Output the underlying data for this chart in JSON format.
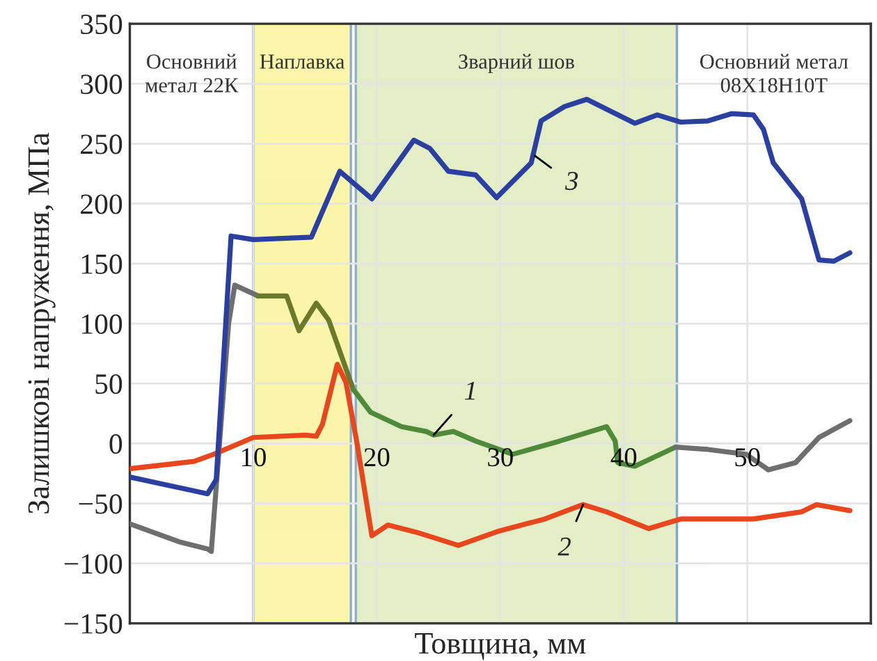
{
  "chart_data": {
    "type": "line",
    "xlabel": "Товщина, мм",
    "ylabel": "Залишкові напруження, МПа",
    "xlim": [
      0,
      60
    ],
    "ylim": [
      -150,
      350
    ],
    "xticks": [
      10,
      20,
      30,
      40,
      50
    ],
    "yticks": [
      {
        "value": -150,
        "label": "−150"
      },
      {
        "value": -100,
        "label": "−100"
      },
      {
        "value": -50,
        "label": "−50"
      },
      0,
      50,
      100,
      150,
      200,
      250,
      300,
      350
    ],
    "grid": true,
    "bands": [
      {
        "axis": "x",
        "from": 0,
        "to": 10,
        "label": "Основний\nметал 22К",
        "color": "#ffffff"
      },
      {
        "axis": "x",
        "from": 10,
        "to": 17.9,
        "label": "Наплавка",
        "color": "#fbf5a0"
      },
      {
        "axis": "x",
        "from": 18.3,
        "to": 44.3,
        "label": "Зварний шов",
        "color": "#e2edc0"
      },
      {
        "axis": "x",
        "from": 44.3,
        "to": 60,
        "label": "Основний метал\n08Х18Н10Т",
        "color": "#ffffff"
      }
    ],
    "series": [
      {
        "color": "#6e6e6e",
        "x": [
          0,
          4,
          6.3,
          6.6,
          8.0,
          8.5,
          10.4
        ],
        "values": [
          -67,
          -82,
          -88,
          -90,
          100,
          132,
          123
        ]
      },
      {
        "color": "#6b7a2a",
        "x": [
          10.4,
          12.7,
          13.7,
          15.1,
          16.1,
          18.1
        ],
        "values": [
          123,
          123,
          94,
          117,
          103,
          45
        ]
      },
      {
        "color": "#4f8a3a",
        "x": [
          18.1,
          19.5,
          22,
          24,
          24.6,
          26.2,
          28,
          31,
          34.8,
          38.6,
          39.3,
          39.5,
          40.9,
          44.2
        ],
        "values": [
          45,
          26,
          14,
          10,
          7,
          10,
          2,
          -9,
          2,
          14,
          2,
          -16,
          -19,
          -3
        ]
      },
      {
        "color": "#6e6e6e",
        "x": [
          44.2,
          46.8,
          49.9,
          51.7,
          53.9,
          55.8,
          58.3
        ],
        "values": [
          -3,
          -5,
          -9,
          -22,
          -16,
          5,
          19
        ]
      },
      {
        "color": "#e8461c",
        "x": [
          0,
          5.2,
          6.8,
          10,
          14.2,
          15.1,
          15.6,
          16.8,
          17.5,
          18.4,
          19.6,
          20.9,
          23.2,
          26.6,
          29.9,
          33.6,
          36.7,
          38.6,
          42,
          44.6,
          50.5,
          54.4,
          55.6,
          58.3
        ],
        "values": [
          -21,
          -15,
          -9,
          5,
          7,
          6,
          16,
          66,
          51,
          0,
          -77,
          -68,
          -74,
          -85,
          -73,
          -63,
          -51,
          -57,
          -71,
          -63,
          -63,
          -57,
          -51,
          -56
        ]
      },
      {
        "color": "#2a3f9f",
        "x": [
          0,
          6.3,
          7.0,
          8.2,
          10,
          14.7,
          17.0,
          19.6,
          23,
          24.3,
          25.8,
          28,
          29.7,
          32.5,
          33.3,
          35.2,
          37,
          40.9,
          42.7,
          44.6,
          46.8,
          48.7,
          50.5,
          51.3,
          52.1,
          54.4,
          55.8,
          57,
          58.3
        ],
        "values": [
          -28,
          -42,
          -30,
          173,
          170,
          172,
          227,
          204,
          253,
          246,
          227,
          224,
          205,
          234,
          269,
          281,
          287,
          267,
          274,
          268,
          269,
          275,
          274,
          262,
          234,
          204,
          153,
          152,
          159
        ]
      }
    ],
    "annotations": [
      {
        "text": "1",
        "x": 24.6,
        "y": 7
      },
      {
        "text": "2",
        "x": 36.7,
        "y": -51
      },
      {
        "text": "3",
        "x": 32.8,
        "y": 240
      }
    ]
  }
}
